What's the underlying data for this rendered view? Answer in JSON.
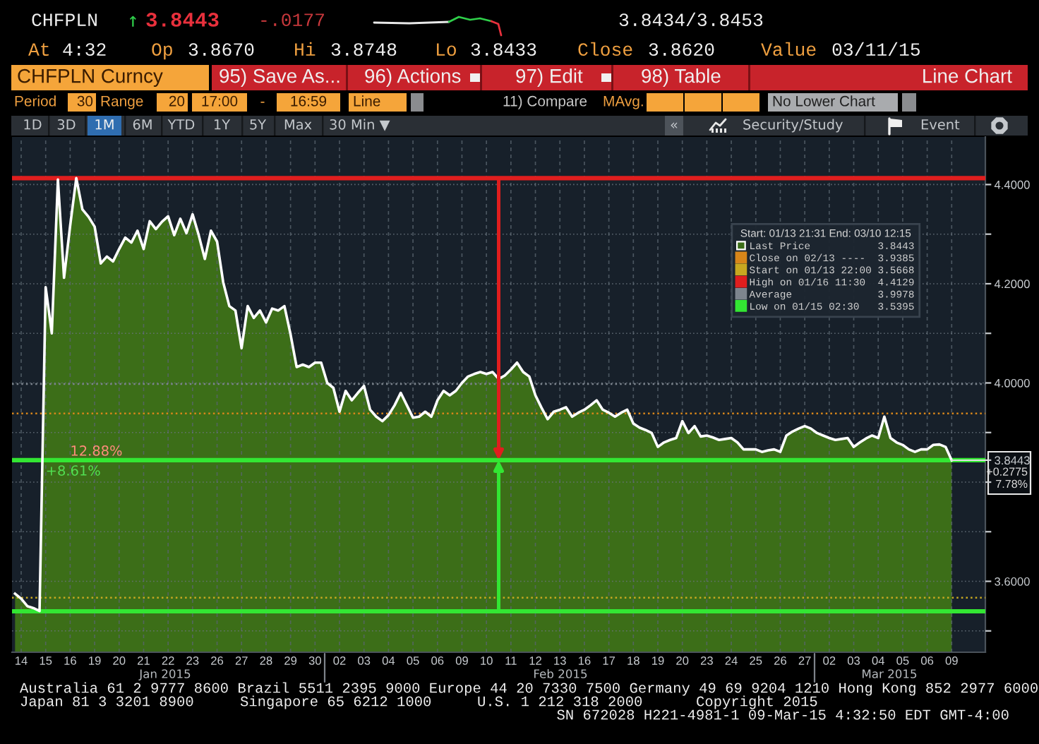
{
  "chart_data": {
    "type": "area",
    "categories": [
      null,
      "14",
      null,
      null,
      null,
      "15",
      null,
      null,
      null,
      "16",
      null,
      null,
      null,
      "19",
      null,
      null,
      null,
      "20",
      null,
      null,
      null,
      "21",
      null,
      null,
      null,
      "22",
      null,
      null,
      null,
      "23",
      null,
      null,
      null,
      "26",
      null,
      null,
      null,
      "27",
      null,
      null,
      null,
      "28",
      null,
      null,
      null,
      "29",
      null,
      null,
      null,
      "30",
      null,
      null,
      null,
      "02",
      null,
      null,
      null,
      "03",
      null,
      null,
      null,
      "04",
      null,
      null,
      null,
      "05",
      null,
      null,
      null,
      "06",
      null,
      null,
      null,
      "09",
      null,
      null,
      null,
      "10",
      null,
      null,
      null,
      "11",
      null,
      null,
      null,
      "12",
      null,
      null,
      null,
      "13",
      null,
      null,
      null,
      "16",
      null,
      null,
      null,
      "17",
      null,
      null,
      null,
      "18",
      null,
      null,
      null,
      "19",
      null,
      null,
      null,
      "20",
      null,
      null,
      null,
      "23",
      null,
      null,
      null,
      "24",
      null,
      null,
      null,
      "25",
      null,
      null,
      null,
      "26",
      null,
      null,
      null,
      "27",
      null,
      null,
      null,
      "02",
      null,
      null,
      null,
      "03",
      null,
      null,
      null,
      "04",
      null,
      null,
      null,
      "05",
      null,
      null,
      null,
      "06",
      null,
      null,
      null,
      "09",
      null,
      null,
      null,
      null,
      null
    ],
    "series": [
      {
        "name": "Last Price 3.8443",
        "color": "#3c6e18",
        "values": [
          3.575,
          3.565,
          3.55,
          3.546,
          3.54,
          4.193,
          4.1,
          4.41,
          4.212,
          4.317,
          4.413,
          4.35,
          4.335,
          4.315,
          4.241,
          4.255,
          4.245,
          4.27,
          4.293,
          4.283,
          4.307,
          4.27,
          4.326,
          4.31,
          4.325,
          4.336,
          4.298,
          4.331,
          4.302,
          4.34,
          4.298,
          4.25,
          4.307,
          4.285,
          4.203,
          4.155,
          4.146,
          4.07,
          4.155,
          4.131,
          4.146,
          4.122,
          4.15,
          4.146,
          4.155,
          4.098,
          4.032,
          4.037,
          4.032,
          4.041,
          4.041,
          4.0,
          3.99,
          3.942,
          3.984,
          3.965,
          3.98,
          3.994,
          3.946,
          3.932,
          3.923,
          3.935,
          3.955,
          3.98,
          3.955,
          3.93,
          3.932,
          3.942,
          3.932,
          3.965,
          3.984,
          3.975,
          3.984,
          4.0,
          4.013,
          4.018,
          4.022,
          4.018,
          4.022,
          4.008,
          4.015,
          4.027,
          4.041,
          4.022,
          4.013,
          3.975,
          3.95,
          3.927,
          3.942,
          3.946,
          3.951,
          3.932,
          3.94,
          3.946,
          3.955,
          3.965,
          3.946,
          3.94,
          3.932,
          3.94,
          3.946,
          3.918,
          3.91,
          3.905,
          3.899,
          3.871,
          3.88,
          3.885,
          3.889,
          3.923,
          3.899,
          3.913,
          3.892,
          3.894,
          3.89,
          3.885,
          3.887,
          3.889,
          3.88,
          3.866,
          3.866,
          3.866,
          3.861,
          3.864,
          3.866,
          3.861,
          3.894,
          3.902,
          3.908,
          3.913,
          3.908,
          3.899,
          3.894,
          3.889,
          3.885,
          3.887,
          3.889,
          3.871,
          3.88,
          3.888,
          3.894,
          3.889,
          3.932,
          3.889,
          3.88,
          3.875,
          3.866,
          3.861,
          3.866,
          3.866,
          3.875,
          3.876,
          3.871,
          3.844,
          null,
          null,
          null,
          null,
          null
        ]
      }
    ],
    "ylim": [
      3.457,
      4.496
    ],
    "yticks": [
      {
        "value": 3.5,
        "label": null
      },
      {
        "value": 3.6,
        "label": "3.6000"
      },
      {
        "value": 3.7,
        "label": null
      },
      {
        "value": 3.8,
        "label": null
      },
      {
        "value": 3.8443,
        "label": "3.8443"
      },
      {
        "value": 3.9,
        "label": null
      },
      {
        "value": 4.0,
        "label": "4.0000"
      },
      {
        "value": 4.1,
        "label": null
      },
      {
        "value": 4.2,
        "label": "4.2000"
      },
      {
        "value": 4.3,
        "label": null
      },
      {
        "value": 4.4,
        "label": "4.4000"
      }
    ],
    "ref_lines": [
      {
        "axis": "y",
        "value": 3.9385,
        "label": "Close on 02/13 ---- 3.9385",
        "color": "#d8861a",
        "line_style": "dotted"
      },
      {
        "axis": "y",
        "value": 3.5668,
        "label": "Start on 01/13 22:00 3.5668",
        "color": "#c8a820",
        "line_style": "dotted"
      },
      {
        "axis": "y",
        "value": 4.4129,
        "label": "High on 01/16 11:30 4.4129",
        "color": "#e01e1e",
        "line_style": "solid"
      },
      {
        "axis": "y",
        "value": 3.9978,
        "label": "Average 3.9978",
        "color": "#7d858e",
        "line_style": "dotted"
      },
      {
        "axis": "y",
        "value": 3.5395,
        "label": "Low on 01/15 02:30 3.5395",
        "color": "#33e633",
        "line_style": "solid"
      },
      {
        "axis": "y",
        "value": 3.8443,
        "color": "#33e633",
        "line_style": "solid"
      }
    ],
    "legend": "top right",
    "legend_title": "Start: 01/13 21:31 End: 03/10 12:15",
    "grid": true,
    "annotations": [
      "CHFPLN",
      "↑",
      "3.8443",
      "-.0177",
      "3.8434/3.8453",
      "At",
      "4:32",
      "Op",
      "3.8670",
      "Hi",
      "3.8748",
      "Lo",
      "3.8433",
      "Close",
      "3.8620",
      "Value",
      "03/11/15",
      "CHFPLN Curncy",
      "95) Save As...",
      "96) Actions",
      "97) Edit",
      "98) Table",
      "Line Chart",
      "Period",
      "30",
      "Range",
      "20",
      "17:00",
      "-",
      "16:59",
      "Line",
      "11) Compare",
      "MAvg.",
      "No Lower Chart",
      "1D",
      "3D",
      "1M",
      "6M",
      "YTD",
      "1Y",
      "5Y",
      "Max",
      "30 Min ▼",
      "«",
      "Security/Study",
      "Event",
      "Jan 2015",
      "Feb 2015",
      "Mar 2015",
      "Australia 61 2 9777 8600 Brazil 5511 2395 9000 Europe 44 20 7330 7500 Germany 49 69 9204 1210 Hong Kong 852 2977 6000",
      "Japan 81 3 3201 8900",
      "Singapore 65 6212 1000",
      "U.S. 1 212 318 2000",
      "Copyright 2015",
      "SN 672028 H221-4981-1 09-Mar-15 4:32:50 EDT GMT-4:00",
      "+0.2775\n7.78%",
      {
        "text": "12.88%",
        "x": "16",
        "y": 3.861
      },
      {
        "text": "+8.61%",
        "x": "15",
        "y": 3.821
      }
    ]
  }
}
